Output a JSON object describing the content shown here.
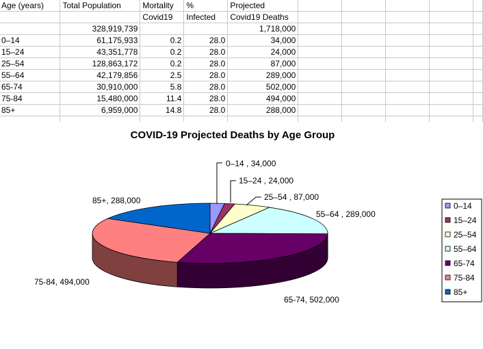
{
  "sheet": {
    "header1": [
      "Age (years)",
      "Total Population",
      "Mortality",
      "%",
      "Projected"
    ],
    "header2": [
      "",
      "",
      "Covid19",
      "Infected",
      "Covid19 Deaths"
    ],
    "totals": [
      "",
      "328,919,739",
      "",
      "",
      "1,718,000"
    ],
    "rows": [
      [
        "0–14",
        "61,175,933",
        "0.2",
        "28.0",
        "34,000"
      ],
      [
        "15–24",
        "43,351,778",
        "0.2",
        "28.0",
        "24,000"
      ],
      [
        "25–54",
        "128,863,172",
        "0.2",
        "28.0",
        "87,000"
      ],
      [
        "55–64",
        "42,179,856",
        "2.5",
        "28.0",
        "289,000"
      ],
      [
        "65-74",
        "30,910,000",
        "5.8",
        "28.0",
        "502,000"
      ],
      [
        "75-84",
        "15,480,000",
        "11.4",
        "28.0",
        "494,000"
      ],
      [
        "85+",
        "6,959,000",
        "14.8",
        "28.0",
        "288,000"
      ]
    ]
  },
  "chart_data": {
    "type": "pie",
    "title": "COVID-19 Projected Deaths by Age Group",
    "categories": [
      "0–14",
      "15–24",
      "25–54",
      "55–64",
      "65-74",
      "75-84",
      "85+"
    ],
    "values": [
      34000,
      24000,
      87000,
      289000,
      502000,
      494000,
      288000
    ],
    "data_labels": [
      "0–14 ,  34,000",
      "15–24 ,  24,000",
      "25–54 ,  87,000",
      "55–64 ,  289,000",
      "65-74,  502,000",
      "75-84,  494,000",
      "85+,  288,000"
    ],
    "colors": [
      "#9999ff",
      "#993366",
      "#ffffcc",
      "#ccffff",
      "#660066",
      "#ff8080",
      "#0066cc"
    ],
    "legend_position": "right",
    "style": "3d"
  }
}
